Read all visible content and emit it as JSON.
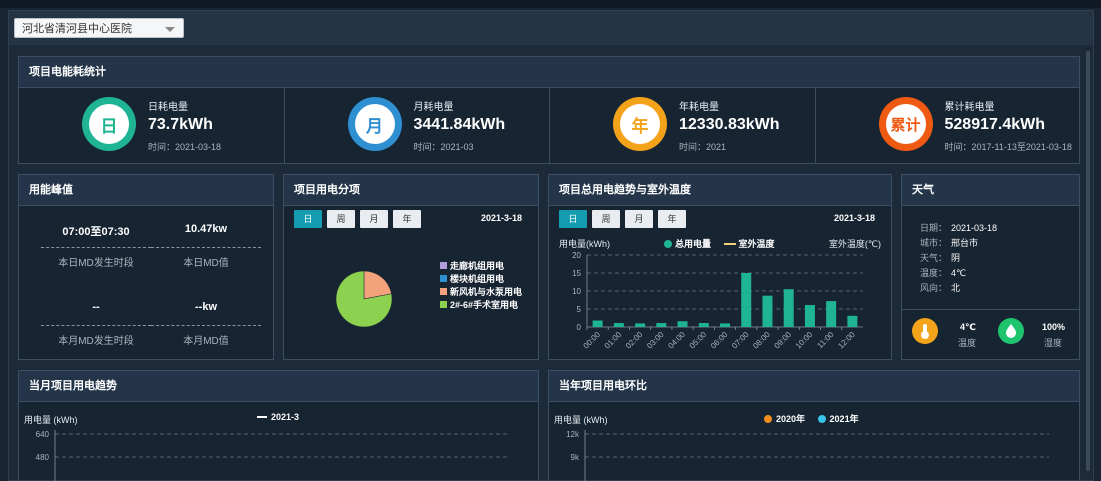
{
  "header": {
    "project_select": "河北省清河县中心医院"
  },
  "energy": {
    "title": "项目电能耗统计",
    "stats": [
      {
        "badge": "日",
        "label": "日耗电量",
        "value": "73.7kWh",
        "time": "时间：2021-03-18",
        "color": "#1fb594"
      },
      {
        "badge": "月",
        "label": "月耗电量",
        "value": "3441.84kWh",
        "time": "时间：2021-03",
        "color": "#2e8fd1"
      },
      {
        "badge": "年",
        "label": "年耗电量",
        "value": "12330.83kWh",
        "time": "时间：2021",
        "color": "#f3a31a"
      },
      {
        "badge": "累计",
        "label": "累计耗电量",
        "value": "528917.4kWh",
        "time": "时间：2017-11-13至2021-03-18",
        "color": "#ef5a13"
      }
    ]
  },
  "peak": {
    "title": "用能峰值",
    "items": [
      {
        "value": "07:00至07:30",
        "label": "本日MD发生时段"
      },
      {
        "value": "10.47kw",
        "label": "本日MD值"
      },
      {
        "value": "--",
        "label": "本月MD发生时段"
      },
      {
        "value": "--kw",
        "label": "本月MD值"
      }
    ]
  },
  "breakdown": {
    "title": "项目用电分项",
    "tabs": [
      "日",
      "周",
      "月",
      "年"
    ],
    "date": "2021-3-18",
    "legend": [
      {
        "name": "走廊机组用电",
        "color": "#b39ddb"
      },
      {
        "name": "楼块机组用电",
        "color": "#2e8fd1"
      },
      {
        "name": "新风机与水泵用电",
        "color": "#f4a27c"
      },
      {
        "name": "2#-6#手术室用电",
        "color": "#8cd14f"
      }
    ],
    "pie": [
      {
        "name": "新风机与水泵用电",
        "value": 22,
        "color": "#f4a27c"
      },
      {
        "name": "2#-6#手术室用电",
        "value": 78,
        "color": "#8cd14f"
      }
    ]
  },
  "trend": {
    "title": "项目总用电趋势与室外温度",
    "tabs": [
      "日",
      "周",
      "月",
      "年"
    ],
    "date": "2021-3-18",
    "ylabel": "用电量(kWh)",
    "y2label": "室外温度(℃)",
    "legend": [
      {
        "name": "总用电量",
        "color": "#1fb594"
      },
      {
        "name": "室外温度",
        "color": "#f5d17a"
      }
    ]
  },
  "weather": {
    "title": "天气",
    "rows": [
      {
        "k": "日期：",
        "v": "2021-03-18"
      },
      {
        "k": "城市：",
        "v": "邢台市"
      },
      {
        "k": "天气：",
        "v": "阴"
      },
      {
        "k": "温度：",
        "v": "4℃"
      },
      {
        "k": "风向：",
        "v": "北"
      }
    ],
    "temp_value": "4℃",
    "temp_label": "温度",
    "humidity_value": "100%",
    "humidity_label": "湿度"
  },
  "monthly": {
    "title": "当月项目用电趋势",
    "ylabel": "用电量 (kWh)",
    "legend": "2021-3"
  },
  "yearly": {
    "title": "当年项目用电环比",
    "ylabel": "用电量 (kWh)",
    "legend": [
      {
        "name": "2020年",
        "color": "#f28c1e"
      },
      {
        "name": "2021年",
        "color": "#39c5e8"
      }
    ]
  },
  "chart_data": [
    {
      "type": "bar",
      "chart": "项目总用电趋势与室外温度",
      "categories": [
        "00:00",
        "01:00",
        "02:00",
        "03:00",
        "04:00",
        "05:00",
        "06:00",
        "07:00",
        "08:00",
        "09:00",
        "10:00",
        "11:00",
        "12:00"
      ],
      "series": [
        {
          "name": "总用电量",
          "values": [
            1.8,
            1.1,
            1.0,
            1.1,
            1.6,
            1.1,
            1.0,
            15.0,
            8.7,
            10.5,
            6.1,
            7.2,
            3.1
          ]
        }
      ],
      "ylim": [
        0,
        20
      ],
      "yticks": [
        0,
        5,
        10,
        15,
        20
      ],
      "xlabel": "",
      "ylabel": "用电量(kWh)"
    },
    {
      "type": "line",
      "chart": "当月项目用电趋势",
      "series": [
        {
          "name": "2021-3",
          "values": []
        }
      ],
      "yticks_visible": [
        640,
        480
      ],
      "ylabel": "用电量 (kWh)"
    },
    {
      "type": "line",
      "chart": "当年项目用电环比",
      "series": [
        {
          "name": "2020年",
          "values": []
        },
        {
          "name": "2021年",
          "values": []
        }
      ],
      "yticks_visible": [
        "12k",
        "9k"
      ],
      "ylabel": "用电量 (kWh)"
    }
  ]
}
